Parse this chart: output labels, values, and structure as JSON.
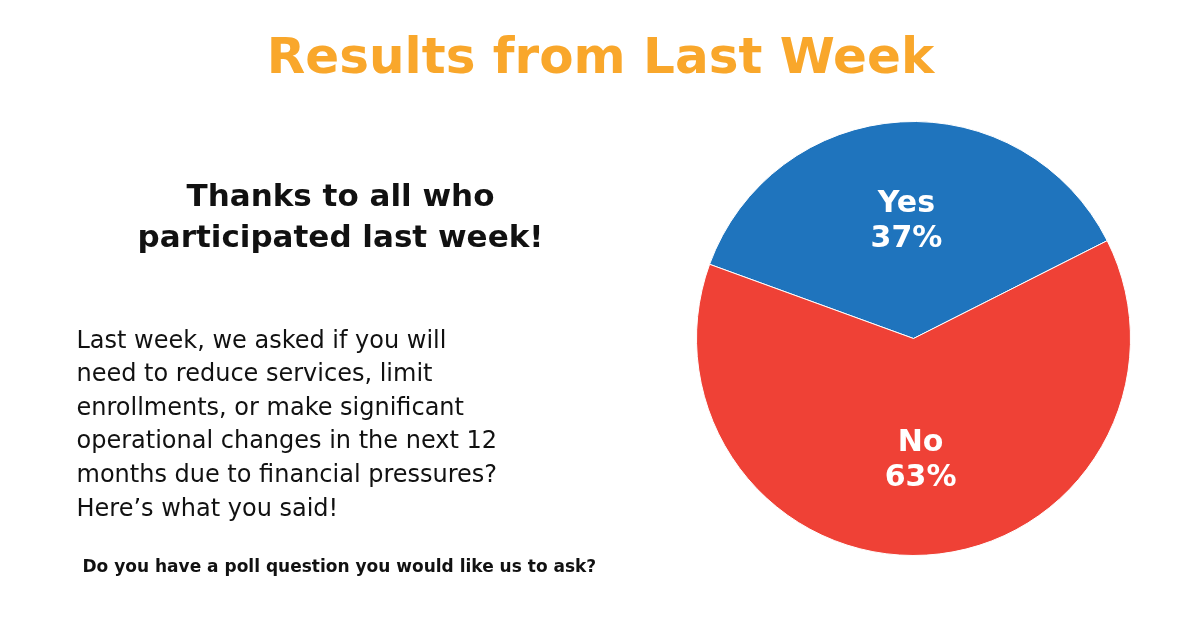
{
  "chart_data": {
    "type": "pie",
    "title": "Results from Last Week",
    "subtitle": "Thanks to all who\nparticipated last week!",
    "annotations": [
      "Last week, we asked if you will\nneed to reduce services, limit\nenrollments, or make significant\noperational changes in the next 12\nmonths due to financial pressures?\nHere’s what you said!",
      "Do you have a poll question you would like us to ask?"
    ],
    "categories": [
      "Yes",
      "No"
    ],
    "values": [
      37,
      63
    ],
    "value_labels": [
      "37%",
      "63%"
    ],
    "colors": [
      "#1f74bd",
      "#ef4136"
    ]
  }
}
